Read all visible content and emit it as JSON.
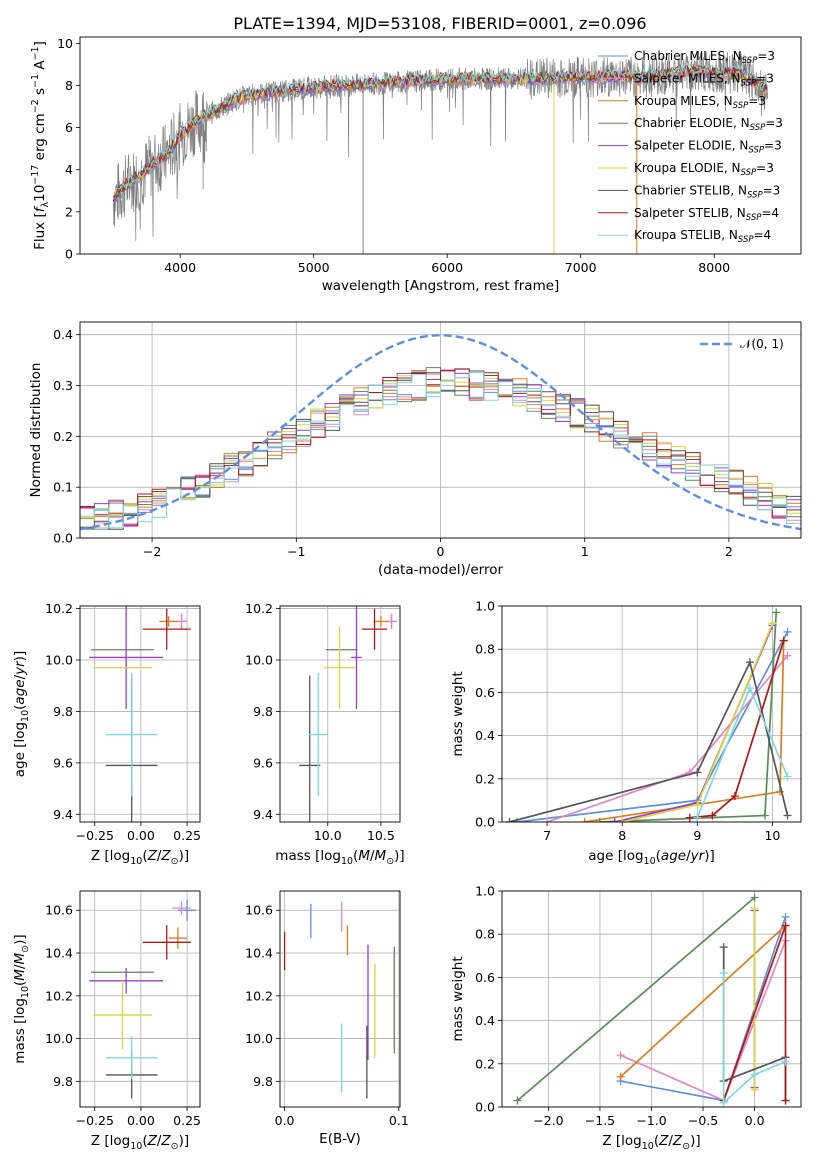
{
  "colors": {
    "Chabrier MILES": "#5f8fdf",
    "Salpeter MILES": "#e387c2",
    "Kroupa MILES": "#e07c1c",
    "Chabrier ELODIE": "#5a8a5a",
    "Salpeter ELODIE": "#9b3fd0",
    "Kroupa ELODIE": "#d6d83a",
    "Chabrier STELIB": "#555555",
    "Salpeter STELIB": "#b01818",
    "Kroupa STELIB": "#7fd9dc",
    "data": "#808080"
  },
  "models": [
    {
      "key": "Chabrier MILES",
      "label": "Chabrier MILES, N",
      "nssp": "=3"
    },
    {
      "key": "Salpeter MILES",
      "label": "Salpeter MILES, N",
      "nssp": "=3"
    },
    {
      "key": "Kroupa MILES",
      "label": "Kroupa MILES, N",
      "nssp": "=3"
    },
    {
      "key": "Chabrier ELODIE",
      "label": "Chabrier ELODIE, N",
      "nssp": "=3"
    },
    {
      "key": "Salpeter ELODIE",
      "label": "Salpeter ELODIE, N",
      "nssp": "=3"
    },
    {
      "key": "Kroupa ELODIE",
      "label": "Kroupa ELODIE, N",
      "nssp": "=3"
    },
    {
      "key": "Chabrier STELIB",
      "label": "Chabrier STELIB, N",
      "nssp": "=3"
    },
    {
      "key": "Salpeter STELIB",
      "label": "Salpeter STELIB, N",
      "nssp": "=4"
    },
    {
      "key": "Kroupa STELIB",
      "label": "Kroupa STELIB, N",
      "nssp": "=4"
    }
  ],
  "chart_data": [
    {
      "id": "spectrum",
      "type": "line",
      "title": "PLATE=1394, MJD=53108, FIBERID=0001, z=0.096",
      "xlabel": "wavelength [Angstrom, rest frame]",
      "ylabel": "Flux [f_λ 10^-17 erg cm^-2 s^-1 A^-1]",
      "xlim": [
        3250,
        8650
      ],
      "ylim": [
        0,
        10.3
      ],
      "xticks": [
        4000,
        5000,
        6000,
        7000,
        8000
      ],
      "yticks": [
        0,
        2,
        4,
        6,
        8,
        10
      ],
      "legend": "upper right",
      "continuum": {
        "x": [
          3500,
          3600,
          3700,
          3800,
          3900,
          4000,
          4100,
          4200,
          4300,
          4400,
          4500,
          4700,
          5000,
          5500,
          6000,
          6500,
          7000,
          7500,
          7800,
          8000,
          8200,
          8400
        ],
        "y": [
          2.6,
          3.3,
          3.7,
          4.3,
          4.7,
          5.6,
          6.2,
          6.6,
          6.9,
          7.3,
          7.5,
          7.7,
          7.9,
          8.1,
          8.3,
          8.3,
          8.4,
          8.4,
          8.7,
          8.6,
          8.6,
          7.7
        ]
      },
      "spikes": [
        {
          "x": 5370,
          "y": 0
        },
        {
          "x": 6800,
          "y": 0
        },
        {
          "x": 7420,
          "y": 0
        }
      ]
    },
    {
      "id": "residuals",
      "type": "histogram",
      "xlabel": "(data-model)/error",
      "ylabel": "Normed distribution",
      "xlim": [
        -2.5,
        2.5
      ],
      "ylim": [
        0,
        0.425
      ],
      "xticks": [
        -2,
        -1,
        0,
        1,
        2
      ],
      "yticks": [
        0.0,
        0.1,
        0.2,
        0.3,
        0.4
      ],
      "bin_width": 0.1,
      "reference_curve": {
        "label": "𝒩(0, 1)",
        "mean": 0,
        "sigma": 1
      },
      "envelope": {
        "x": [
          -2.5,
          -2.0,
          -1.5,
          -1.0,
          -0.5,
          0.0,
          0.5,
          1.0,
          1.5,
          2.0,
          2.5
        ],
        "y": [
          0.03,
          0.06,
          0.13,
          0.2,
          0.28,
          0.31,
          0.29,
          0.24,
          0.17,
          0.11,
          0.05
        ]
      }
    },
    {
      "id": "age-vs-Z",
      "type": "errorbar",
      "xlabel": "Z [log10(Z/Z⊙)]",
      "ylabel": "age  [log10(age/yr)]",
      "xlim": [
        -0.33,
        0.32
      ],
      "ylim": [
        9.37,
        10.21
      ],
      "xticks": [
        -0.25,
        0.0,
        0.25
      ],
      "yticks": [
        9.4,
        9.6,
        9.8,
        10.0,
        10.2
      ],
      "points": [
        {
          "series": "Chabrier MILES",
          "x": 0.22,
          "y": 10.15,
          "xerr": 0.03,
          "yerr": 0.03
        },
        {
          "series": "Salpeter MILES",
          "x": 0.22,
          "y": 10.15,
          "xerr": 0.03,
          "yerr": 0.03
        },
        {
          "series": "Kroupa MILES",
          "x": 0.15,
          "y": 10.15,
          "xerr": 0.05,
          "yerr": 0.02
        },
        {
          "series": "Chabrier ELODIE",
          "x": -0.1,
          "y": 10.04,
          "xerr": 0.17,
          "yerr": 0.0
        },
        {
          "series": "Salpeter ELODIE",
          "x": -0.08,
          "y": 10.01,
          "xerr": 0.2,
          "yerr": 0.2
        },
        {
          "series": "Kroupa ELODIE",
          "x": -0.1,
          "y": 9.97,
          "xerr": 0.16,
          "yerr": 0.0
        },
        {
          "series": "Chabrier STELIB",
          "x": -0.05,
          "y": 9.59,
          "xerr": 0.14,
          "yerr": 0.35
        },
        {
          "series": "Salpeter STELIB",
          "x": 0.14,
          "y": 10.12,
          "xerr": 0.13,
          "yerr": 0.08
        },
        {
          "series": "Kroupa STELIB",
          "x": -0.05,
          "y": 9.71,
          "xerr": 0.14,
          "yerr": 0.24
        }
      ]
    },
    {
      "id": "age-vs-mass",
      "type": "errorbar",
      "xlabel": "mass [log10(M/M⊙)]",
      "ylabel": "",
      "xlim": [
        9.55,
        10.68
      ],
      "ylim": [
        9.37,
        10.21
      ],
      "xticks": [
        10.0,
        10.5
      ],
      "yticks": [
        9.4,
        9.6,
        9.8,
        10.0,
        10.2
      ],
      "points": [
        {
          "series": "Chabrier MILES",
          "x": 10.6,
          "y": 10.15,
          "xerr": 0.05,
          "yerr": 0.03
        },
        {
          "series": "Salpeter MILES",
          "x": 10.6,
          "y": 10.15,
          "xerr": 0.05,
          "yerr": 0.03
        },
        {
          "series": "Kroupa MILES",
          "x": 10.5,
          "y": 10.15,
          "xerr": 0.07,
          "yerr": 0.02
        },
        {
          "series": "Chabrier ELODIE",
          "x": 10.13,
          "y": 10.04,
          "xerr": 0.15,
          "yerr": 0.0
        },
        {
          "series": "Salpeter ELODIE",
          "x": 10.27,
          "y": 10.01,
          "xerr": 0.05,
          "yerr": 0.2
        },
        {
          "series": "Kroupa ELODIE",
          "x": 10.11,
          "y": 9.97,
          "xerr": 0.15,
          "yerr": 0.16
        },
        {
          "series": "Chabrier STELIB",
          "x": 9.83,
          "y": 9.59,
          "xerr": 0.1,
          "yerr": 0.35
        },
        {
          "series": "Salpeter STELIB",
          "x": 10.44,
          "y": 10.12,
          "xerr": 0.12,
          "yerr": 0.08
        },
        {
          "series": "Kroupa STELIB",
          "x": 9.91,
          "y": 9.71,
          "xerr": 0.09,
          "yerr": 0.24
        }
      ]
    },
    {
      "id": "weight-vs-age",
      "type": "line",
      "xlabel": "age  [log10(age/yr)]",
      "ylabel": "mass weight",
      "xlim": [
        6.4,
        10.38
      ],
      "ylim": [
        0,
        1
      ],
      "xticks": [
        7,
        8,
        9,
        10
      ],
      "yticks": [
        0.0,
        0.2,
        0.4,
        0.6,
        0.8,
        1.0
      ],
      "series": [
        {
          "name": "Chabrier MILES",
          "x": [
            6.6,
            9.0,
            10.2
          ],
          "y": [
            0.0,
            0.1,
            0.88
          ]
        },
        {
          "name": "Salpeter MILES",
          "x": [
            7.0,
            8.9,
            10.2
          ],
          "y": [
            0.0,
            0.23,
            0.77
          ]
        },
        {
          "name": "Kroupa MILES",
          "x": [
            7.5,
            10.1,
            10.15
          ],
          "y": [
            0.0,
            0.14,
            0.84
          ]
        },
        {
          "name": "Chabrier ELODIE",
          "x": [
            7.7,
            9.9,
            10.05
          ],
          "y": [
            0.0,
            0.03,
            0.97
          ]
        },
        {
          "name": "Salpeter ELODIE",
          "x": [
            7.9,
            9.0,
            10.0
          ],
          "y": [
            0.0,
            0.09,
            0.91
          ]
        },
        {
          "name": "Kroupa ELODIE",
          "x": [
            8.0,
            9.0,
            10.0
          ],
          "y": [
            0.0,
            0.08,
            0.92
          ]
        },
        {
          "name": "Chabrier STELIB",
          "x": [
            6.5,
            9.0,
            9.7,
            10.2
          ],
          "y": [
            0.0,
            0.23,
            0.74,
            0.03
          ]
        },
        {
          "name": "Salpeter STELIB",
          "x": [
            8.9,
            9.2,
            9.5,
            10.15
          ],
          "y": [
            0.02,
            0.03,
            0.12,
            0.84
          ]
        },
        {
          "name": "Kroupa STELIB",
          "x": [
            9.0,
            9.7,
            10.2
          ],
          "y": [
            0.02,
            0.62,
            0.21
          ]
        }
      ]
    },
    {
      "id": "mass-vs-Z",
      "type": "errorbar",
      "xlabel": "Z [log10(Z/Z⊙)]",
      "ylabel": "mass [log10(M/M⊙)]",
      "xlim": [
        -0.33,
        0.32
      ],
      "ylim": [
        9.68,
        10.69
      ],
      "xticks": [
        -0.25,
        0.0,
        0.25
      ],
      "yticks": [
        9.8,
        10.0,
        10.2,
        10.4,
        10.6
      ],
      "points": [
        {
          "series": "Chabrier MILES",
          "x": 0.25,
          "y": 10.6,
          "xerr": 0.05,
          "yerr": 0.05
        },
        {
          "series": "Salpeter MILES",
          "x": 0.22,
          "y": 10.61,
          "xerr": 0.05,
          "yerr": 0.03
        },
        {
          "series": "Kroupa MILES",
          "x": 0.2,
          "y": 10.47,
          "xerr": 0.05,
          "yerr": 0.05
        },
        {
          "series": "Chabrier ELODIE",
          "x": -0.1,
          "y": 10.31,
          "xerr": 0.17,
          "yerr": 0.0
        },
        {
          "series": "Salpeter ELODIE",
          "x": -0.08,
          "y": 10.27,
          "xerr": 0.2,
          "yerr": 0.06
        },
        {
          "series": "Kroupa ELODIE",
          "x": -0.1,
          "y": 10.11,
          "xerr": 0.16,
          "yerr": 0.16
        },
        {
          "series": "Chabrier STELIB",
          "x": -0.05,
          "y": 9.83,
          "xerr": 0.14,
          "yerr": 0.11
        },
        {
          "series": "Salpeter STELIB",
          "x": 0.14,
          "y": 10.45,
          "xerr": 0.13,
          "yerr": 0.08
        },
        {
          "series": "Kroupa STELIB",
          "x": -0.05,
          "y": 9.91,
          "xerr": 0.14,
          "yerr": 0.1
        }
      ]
    },
    {
      "id": "mass-vs-EBV",
      "type": "errorbar",
      "xlabel": "E(B-V)",
      "ylabel": "",
      "xlim": [
        -0.004,
        0.101
      ],
      "ylim": [
        9.68,
        10.69
      ],
      "xticks": [
        0.0,
        0.1
      ],
      "yticks": [
        9.8,
        10.0,
        10.2,
        10.4,
        10.6
      ],
      "points": [
        {
          "series": "Salpeter STELIB",
          "x": 0.0,
          "y": 10.41,
          "xerr": 0.0,
          "yerr": 0.09
        },
        {
          "series": "Chabrier MILES",
          "x": 0.023,
          "y": 10.55,
          "xerr": 0.0,
          "yerr": 0.08
        },
        {
          "series": "Salpeter MILES",
          "x": 0.05,
          "y": 10.57,
          "xerr": 0.0,
          "yerr": 0.07
        },
        {
          "series": "Kroupa MILES",
          "x": 0.055,
          "y": 10.46,
          "xerr": 0.0,
          "yerr": 0.07
        },
        {
          "series": "Kroupa STELIB",
          "x": 0.05,
          "y": 9.91,
          "xerr": 0.0,
          "yerr": 0.16
        },
        {
          "series": "Chabrier STELIB",
          "x": 0.072,
          "y": 9.89,
          "xerr": 0.0,
          "yerr": 0.17
        },
        {
          "series": "Salpeter ELODIE",
          "x": 0.073,
          "y": 10.17,
          "xerr": 0.0,
          "yerr": 0.27
        },
        {
          "series": "Kroupa ELODIE",
          "x": 0.079,
          "y": 10.13,
          "xerr": 0.0,
          "yerr": 0.22
        },
        {
          "series": "Chabrier ELODIE",
          "x": 0.096,
          "y": 10.18,
          "xerr": 0.0,
          "yerr": 0.25
        }
      ]
    },
    {
      "id": "weight-vs-Z",
      "type": "line",
      "xlabel": "Z [log10(Z/Z⊙)]",
      "ylabel": "mass weight",
      "xlim": [
        -2.45,
        0.45
      ],
      "ylim": [
        0,
        1
      ],
      "xticks": [
        -2.0,
        -1.5,
        -1.0,
        -0.5,
        0.0
      ],
      "yticks": [
        0.0,
        0.2,
        0.4,
        0.6,
        0.8,
        1.0
      ],
      "series": [
        {
          "name": "Chabrier MILES",
          "x": [
            -1.3,
            -0.3,
            0.3
          ],
          "y": [
            0.12,
            0.03,
            0.88
          ]
        },
        {
          "name": "Salpeter MILES",
          "x": [
            -1.3,
            -0.3,
            0.3
          ],
          "y": [
            0.24,
            0.03,
            0.77
          ]
        },
        {
          "name": "Kroupa MILES",
          "x": [
            -1.3,
            0.3
          ],
          "y": [
            0.14,
            0.84
          ]
        },
        {
          "name": "Chabrier ELODIE",
          "x": [
            -2.3,
            0.0
          ],
          "y": [
            0.03,
            0.97
          ]
        },
        {
          "name": "Salpeter ELODIE",
          "x": [
            0.0,
            0.0
          ],
          "y": [
            0.09,
            0.91
          ]
        },
        {
          "name": "Kroupa ELODIE",
          "x": [
            0.0,
            0.0
          ],
          "y": [
            0.08,
            0.92
          ]
        },
        {
          "name": "Chabrier STELIB",
          "x": [
            -0.3,
            -0.3,
            0.3,
            0.3
          ],
          "y": [
            0.74,
            0.12,
            0.23,
            0.03
          ]
        },
        {
          "name": "Salpeter STELIB",
          "x": [
            -0.3,
            0.3,
            0.3
          ],
          "y": [
            0.03,
            0.84,
            0.03
          ]
        },
        {
          "name": "Kroupa STELIB",
          "x": [
            -0.3,
            -0.3,
            0.0,
            0.3
          ],
          "y": [
            0.62,
            0.02,
            0.15,
            0.21
          ]
        }
      ]
    }
  ]
}
